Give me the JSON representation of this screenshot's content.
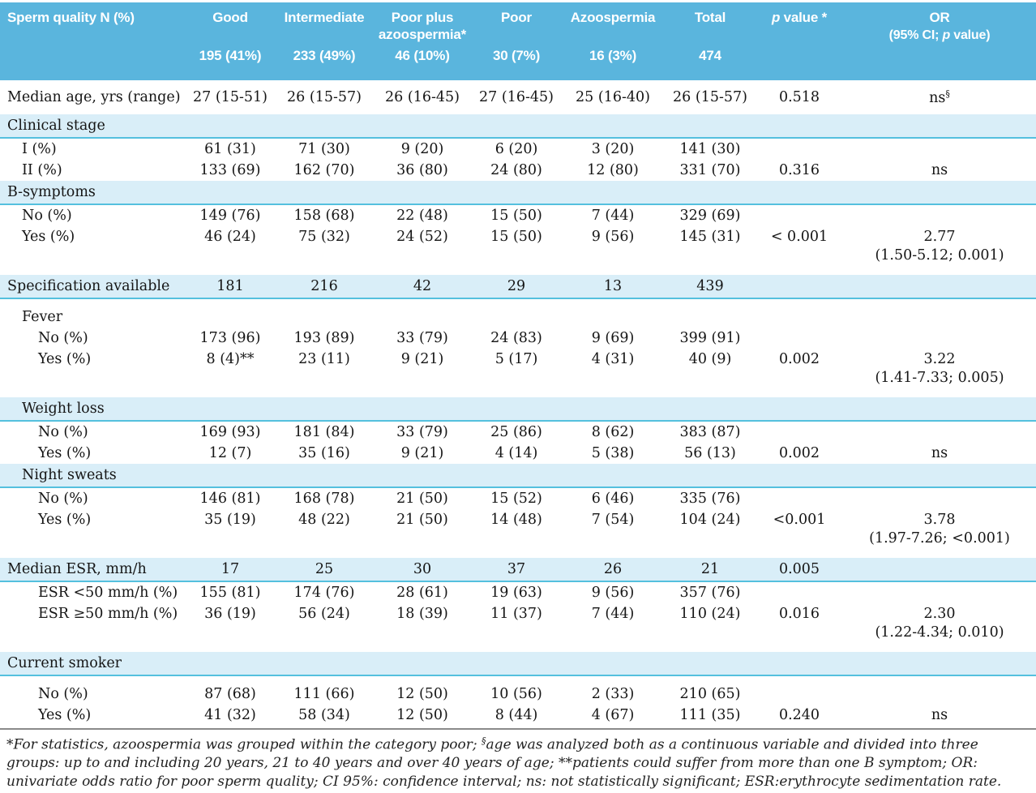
{
  "colors": {
    "header_blue": "#5ab5dd",
    "band_blue": "#d9eef8",
    "band_underline_cyan": "#54c0de",
    "header_text": "#ffffff",
    "body_text": "#151515"
  },
  "table": {
    "columns": [
      {
        "label": "Sperm quality N (%)",
        "count": ""
      },
      {
        "label": "Good",
        "count": "195 (41%)"
      },
      {
        "label": "Intermediate",
        "count": "233 (49%)"
      },
      {
        "label": "Poor plus azoospermia*",
        "count": "46 (10%)"
      },
      {
        "label": "Poor",
        "count": "30 (7%)"
      },
      {
        "label": "Azoospermia",
        "count": "16 (3%)"
      },
      {
        "label": "Total",
        "count": "474"
      },
      {
        "label": "p value *",
        "count": ""
      },
      {
        "label": "OR",
        "sub": "(95% CI; p value)",
        "count": ""
      }
    ],
    "rows": [
      {
        "t": "data",
        "i": 0,
        "c": [
          "Median age, yrs (range)",
          "27 (15-51)",
          "26 (15-57)",
          "26 (16-45)",
          "27 (16-45)",
          "25 (16-40)",
          "26 (15-57)",
          "0.518",
          "ns§"
        ]
      },
      {
        "t": "band",
        "i": 0,
        "c": [
          "Clinical stage",
          "",
          "",
          "",
          "",
          "",
          "",
          "",
          ""
        ]
      },
      {
        "t": "data",
        "i": 1,
        "c": [
          "I (%)",
          "61 (31)",
          "71 (30)",
          "9 (20)",
          "6 (20)",
          "3 (20)",
          "141 (30)",
          "",
          ""
        ]
      },
      {
        "t": "data",
        "i": 1,
        "c": [
          "II (%)",
          "133 (69)",
          "162 (70)",
          "36 (80)",
          "24 (80)",
          "12 (80)",
          "331 (70)",
          "0.316",
          "ns"
        ]
      },
      {
        "t": "band",
        "i": 0,
        "c": [
          "B-symptoms",
          "",
          "",
          "",
          "",
          "",
          "",
          "",
          ""
        ]
      },
      {
        "t": "data",
        "i": 1,
        "c": [
          "No (%)",
          "149 (76)",
          "158 (68)",
          "22 (48)",
          "15 (50)",
          "7 (44)",
          "329 (69)",
          "",
          ""
        ]
      },
      {
        "t": "data",
        "i": 1,
        "c": [
          "Yes (%)",
          "46 (24)",
          "75 (32)",
          "24 (52)",
          "15 (50)",
          "9 (56)",
          "145 (31)",
          "< 0.001",
          "2.77"
        ]
      },
      {
        "t": "cont",
        "i": 0,
        "c": [
          "",
          "",
          "",
          "",
          "",
          "",
          "",
          "",
          "(1.50-5.12; 0.001)"
        ]
      },
      {
        "t": "gap"
      },
      {
        "t": "band",
        "i": 0,
        "c": [
          "Specification available",
          "181",
          "216",
          "42",
          "29",
          "13",
          "439",
          "",
          ""
        ]
      },
      {
        "t": "gap"
      },
      {
        "t": "sub",
        "i": 1,
        "c": [
          "Fever",
          "",
          "",
          "",
          "",
          "",
          "",
          "",
          ""
        ]
      },
      {
        "t": "data",
        "i": 2,
        "c": [
          "No (%)",
          "173 (96)",
          "193 (89)",
          "33 (79)",
          "24 (83)",
          "9 (69)",
          "399 (91)",
          "",
          ""
        ]
      },
      {
        "t": "data",
        "i": 2,
        "c": [
          "Yes (%)",
          "8 (4)**",
          "23 (11)",
          "9 (21)",
          "5 (17)",
          "4 (31)",
          "40 (9)",
          "0.002",
          "3.22"
        ]
      },
      {
        "t": "cont",
        "i": 0,
        "c": [
          "",
          "",
          "",
          "",
          "",
          "",
          "",
          "",
          "(1.41-7.33; 0.005)"
        ]
      },
      {
        "t": "gap"
      },
      {
        "t": "band",
        "i": 1,
        "c": [
          "Weight loss",
          "",
          "",
          "",
          "",
          "",
          "",
          "",
          ""
        ]
      },
      {
        "t": "data",
        "i": 2,
        "c": [
          "No (%)",
          "169 (93)",
          "181 (84)",
          "33 (79)",
          "25 (86)",
          "8 (62)",
          "383 (87)",
          "",
          ""
        ]
      },
      {
        "t": "data",
        "i": 2,
        "c": [
          "Yes (%)",
          "12 (7)",
          "35 (16)",
          "9 (21)",
          "4 (14)",
          "5 (38)",
          "56 (13)",
          "0.002",
          "ns"
        ]
      },
      {
        "t": "band",
        "i": 1,
        "c": [
          "Night sweats",
          "",
          "",
          "",
          "",
          "",
          "",
          "",
          ""
        ]
      },
      {
        "t": "data",
        "i": 2,
        "c": [
          "No (%)",
          "146 (81)",
          "168 (78)",
          "21 (50)",
          "15 (52)",
          "6 (46)",
          "335 (76)",
          "",
          ""
        ]
      },
      {
        "t": "data",
        "i": 2,
        "c": [
          "Yes (%)",
          "35 (19)",
          "48 (22)",
          "21 (50)",
          "14 (48)",
          "7 (54)",
          "104 (24)",
          "<0.001",
          "3.78"
        ]
      },
      {
        "t": "cont",
        "i": 0,
        "c": [
          "",
          "",
          "",
          "",
          "",
          "",
          "",
          "",
          "(1.97-7.26; <0.001)"
        ]
      },
      {
        "t": "gap"
      },
      {
        "t": "band",
        "i": 0,
        "c": [
          "Median ESR, mm/h",
          "17",
          "25",
          "30",
          "37",
          "26",
          "21",
          "0.005",
          ""
        ]
      },
      {
        "t": "data",
        "i": 2,
        "c": [
          "ESR <50 mm/h (%)",
          "155 (81)",
          "174 (76)",
          "28 (61)",
          "19 (63)",
          "9 (56)",
          "357 (76)",
          "",
          ""
        ]
      },
      {
        "t": "data",
        "i": 2,
        "c": [
          "ESR ≥50 mm/h (%)",
          "36 (19)",
          "56 (24)",
          "18 (39)",
          "11 (37)",
          "7 (44)",
          "110 (24)",
          "0.016",
          "2.30"
        ]
      },
      {
        "t": "cont",
        "i": 0,
        "c": [
          "",
          "",
          "",
          "",
          "",
          "",
          "",
          "",
          "(1.22-4.34; 0.010)"
        ]
      },
      {
        "t": "gap"
      },
      {
        "t": "band",
        "i": 0,
        "c": [
          "Current smoker",
          "",
          "",
          "",
          "",
          "",
          "",
          "",
          ""
        ]
      },
      {
        "t": "gap"
      },
      {
        "t": "data",
        "i": 2,
        "c": [
          "No (%)",
          "87 (68)",
          "111 (66)",
          "12 (50)",
          "10 (56)",
          "2 (33)",
          "210 (65)",
          "",
          ""
        ]
      },
      {
        "t": "data",
        "i": 2,
        "c": [
          "Yes (%)",
          "41 (32)",
          "58 (34)",
          "12 (50)",
          "8 (44)",
          "4 (67)",
          "111 (35)",
          "0.240",
          "ns"
        ]
      }
    ]
  },
  "footnote": "*For statistics, azoospermia was grouped within the category poor; §age was analyzed both as a continuous variable and divided into three groups: up to and including 20 years, 21 to 40 years and over 40 years of age; **patients could suffer from more than one B symptom; OR: univariate odds ratio for poor sperm quality; CI 95%: confidence interval; ns: not statistically significant; ESR:erythrocyte sedimentation rate."
}
